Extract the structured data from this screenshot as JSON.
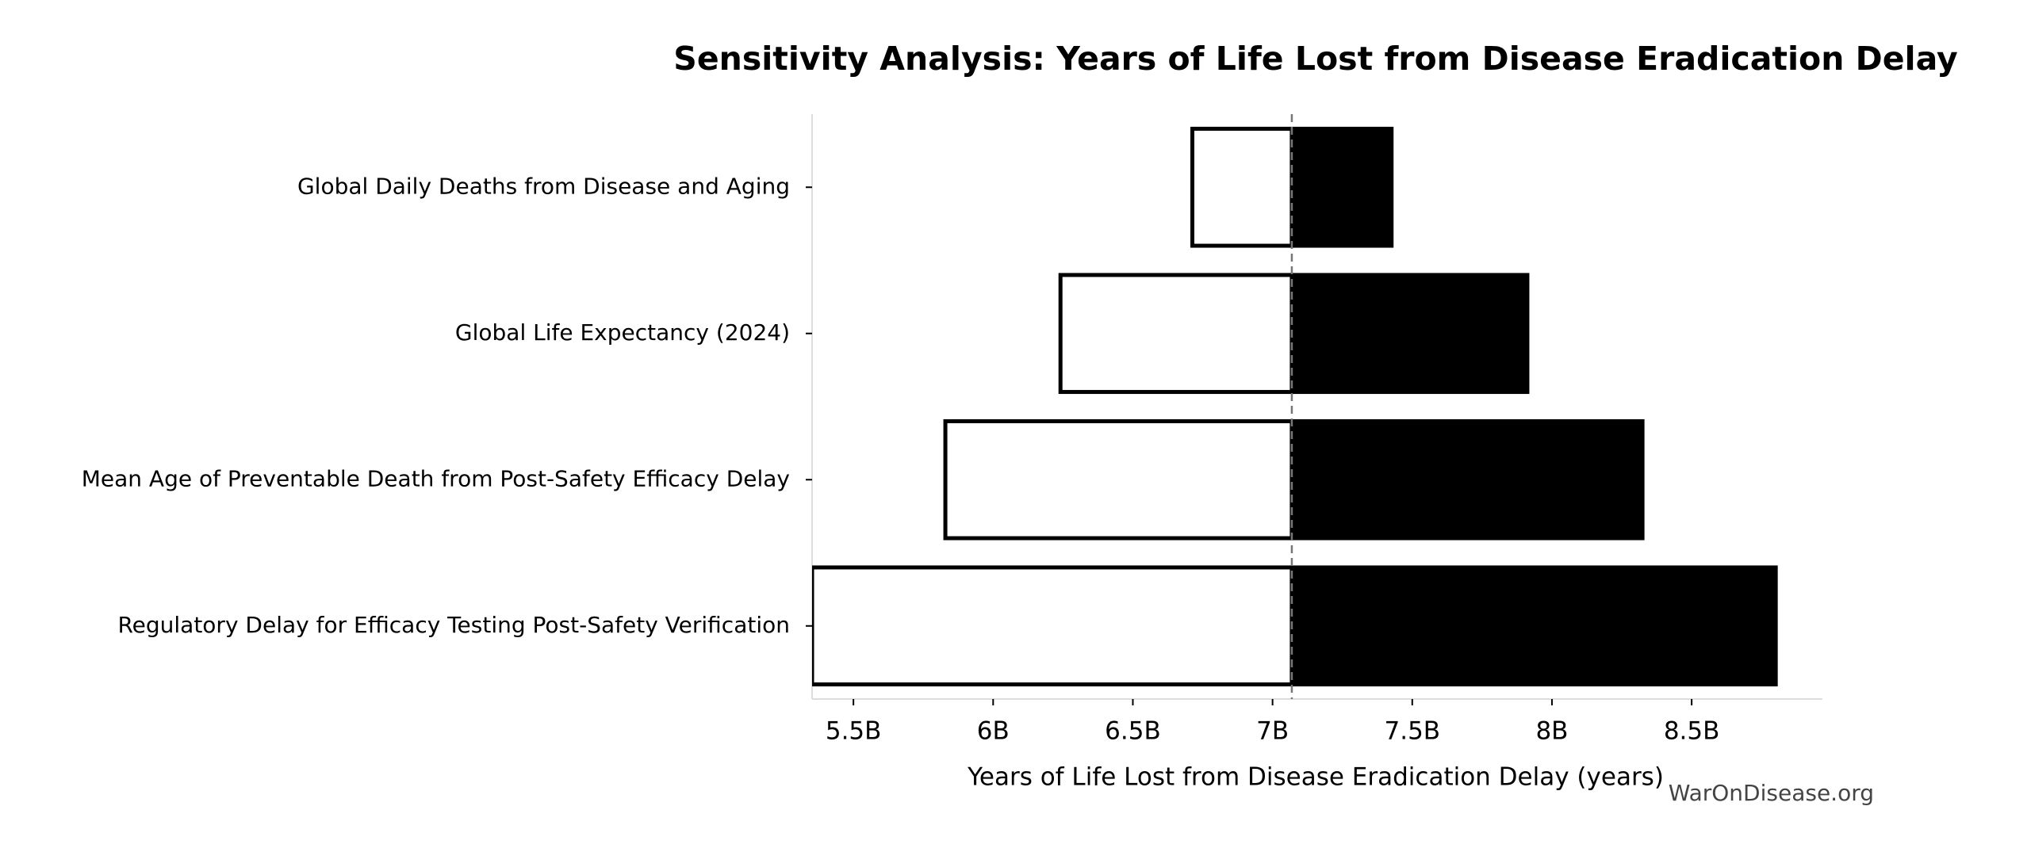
{
  "chart_data": {
    "type": "tornado",
    "title": "Sensitivity Analysis: Years of Life Lost from Disease Eradication Delay",
    "x_label": "Years of Life Lost from Disease Eradication Delay (years)",
    "watermark": "WarOnDisease.org",
    "categories": [
      "Global Daily Deaths from Disease and Aging",
      "Global Life Expectancy (2024)",
      "Mean Age of Preventable Death from Post-Safety Efficacy Delay",
      "Regulatory Delay for Efficacy Testing Post-Safety Verification"
    ],
    "baseline": 7069000000,
    "low_values": [
      6713000000,
      6241000000,
      5829000000,
      5352000000
    ],
    "high_values": [
      7426000000,
      7912000000,
      8324000000,
      8801000000
    ],
    "low_color": "#ffffff",
    "high_color": "#000000",
    "xlim": [
      5352000000,
      8968000000
    ],
    "xticks": [
      {
        "value": 5500000000,
        "label": "5.5B"
      },
      {
        "value": 6000000000,
        "label": "6B"
      },
      {
        "value": 6500000000,
        "label": "6.5B"
      },
      {
        "value": 7000000000,
        "label": "7B"
      },
      {
        "value": 7500000000,
        "label": "7.5B"
      },
      {
        "value": 8000000000,
        "label": "8B"
      },
      {
        "value": 8500000000,
        "label": "8.5B"
      }
    ]
  }
}
